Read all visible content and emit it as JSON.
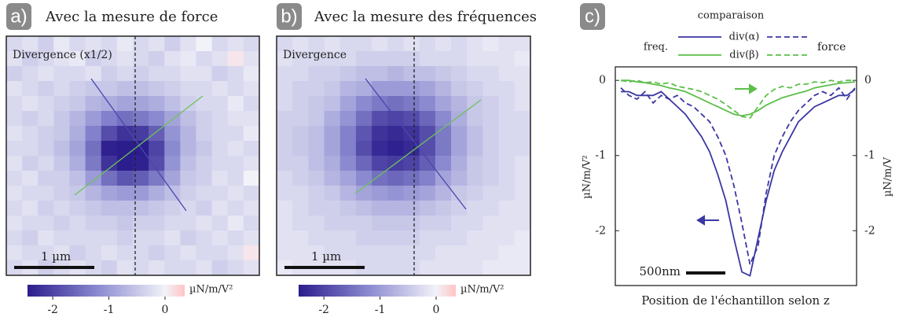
{
  "chart_data": [
    {
      "type": "heatmap",
      "label": "a)",
      "title": "Avec la mesure de force",
      "inset_label": "Divergence (x1/2)",
      "scale_bar": "1 µm",
      "colorbar_label": "µN/m/V²",
      "clim": [
        -2.45,
        0.35
      ],
      "cticks": [
        -2,
        -1,
        0
      ],
      "cmap": [
        [
          -2.45,
          "#2c1d8d"
        ],
        [
          -1.2,
          "#8b8ad0"
        ],
        [
          0,
          "#f2f2f9"
        ],
        [
          0.35,
          "#ffc4c4"
        ]
      ],
      "z": [
        [
          -0.3,
          -0.2,
          -0.4,
          -0.1,
          -0.3,
          -0.2,
          -0.3,
          -0.1,
          -0.3,
          -0.2,
          -0.4,
          -0.2,
          0,
          -0.3,
          -0.2,
          -0.3
        ],
        [
          -0.2,
          -0.4,
          -0.3,
          -0.2,
          -0.1,
          -0.4,
          -0.3,
          -0.2,
          -0.3,
          -0.4,
          -0.2,
          -0.1,
          -0.3,
          -0.2,
          0.1,
          -0.2
        ],
        [
          -0.4,
          -0.3,
          -0.2,
          -0.3,
          -0.3,
          -0.2,
          -0.4,
          -0.3,
          -0.4,
          -0.3,
          -0.3,
          -0.2,
          -0.2,
          -0.4,
          -0.3,
          -0.1
        ],
        [
          -0.2,
          -0.3,
          -0.4,
          -0.3,
          -0.4,
          -0.5,
          -0.5,
          -0.6,
          -0.6,
          -0.5,
          -0.4,
          -0.3,
          -0.3,
          -0.2,
          -0.3,
          -0.2
        ],
        [
          -0.3,
          -0.2,
          -0.3,
          -0.4,
          -0.5,
          -0.7,
          -0.8,
          -0.9,
          -0.9,
          -0.8,
          -0.6,
          -0.4,
          -0.3,
          -0.3,
          -0.1,
          -0.3
        ],
        [
          -0.3,
          -0.4,
          -0.3,
          -0.5,
          -0.7,
          -1.0,
          -1.3,
          -1.5,
          -1.4,
          -1.2,
          -0.9,
          -0.6,
          -0.4,
          -0.3,
          -0.2,
          -0.2
        ],
        [
          -0.2,
          -0.3,
          -0.4,
          -0.5,
          -0.8,
          -1.3,
          -1.9,
          -2.2,
          -2.1,
          -1.7,
          -1.1,
          -0.7,
          -0.4,
          -0.3,
          -0.3,
          -0.1
        ],
        [
          -0.3,
          -0.3,
          -0.4,
          -0.6,
          -0.9,
          -1.5,
          -2.4,
          -2.6,
          -2.5,
          -2.0,
          -1.2,
          -0.7,
          -0.5,
          -0.3,
          -0.2,
          -0.3
        ],
        [
          -0.2,
          -0.4,
          -0.3,
          -0.5,
          -0.8,
          -1.4,
          -2.2,
          -2.5,
          -2.4,
          -1.9,
          -1.1,
          -0.6,
          -0.4,
          -0.3,
          -0.3,
          -0.2
        ],
        [
          -0.3,
          -0.2,
          -0.4,
          -0.4,
          -0.6,
          -1.0,
          -1.5,
          -1.8,
          -1.7,
          -1.4,
          -0.9,
          -0.5,
          -0.4,
          -0.2,
          -0.3,
          0
        ],
        [
          -0.2,
          -0.3,
          -0.3,
          -0.4,
          -0.5,
          -0.7,
          -0.9,
          -1.0,
          -1.0,
          -0.8,
          -0.6,
          -0.4,
          -0.3,
          -0.3,
          -0.2,
          -0.3
        ],
        [
          -0.3,
          -0.2,
          -0.4,
          -0.3,
          -0.4,
          -0.5,
          -0.6,
          -0.6,
          -0.6,
          -0.5,
          -0.4,
          -0.3,
          -0.4,
          -0.2,
          -0.3,
          -0.2
        ],
        [
          -0.2,
          -0.3,
          -0.3,
          -0.4,
          -0.3,
          -0.4,
          -0.4,
          -0.5,
          -0.4,
          -0.4,
          -0.3,
          -0.3,
          -0.2,
          -0.3,
          -0.1,
          -0.3
        ],
        [
          -0.3,
          -0.4,
          -0.2,
          -0.3,
          -0.3,
          -0.3,
          -0.3,
          -0.4,
          -0.3,
          -0.3,
          -0.2,
          -0.4,
          -0.3,
          -0.2,
          -0.3,
          -0.2
        ],
        [
          -0.2,
          -0.3,
          -0.3,
          -0.2,
          -0.4,
          -0.3,
          -0.2,
          -0.3,
          -0.3,
          -0.4,
          -0.3,
          -0.2,
          -0.3,
          -0.3,
          -0.2,
          0.1
        ],
        [
          -0.3,
          -0.2,
          -0.4,
          -0.3,
          -0.2,
          -0.3,
          -0.4,
          -0.2,
          -0.3,
          -0.2,
          -0.3,
          -0.3,
          -0.2,
          -0.4,
          -0.3,
          -0.2
        ]
      ]
    },
    {
      "type": "heatmap",
      "label": "b)",
      "title": "Avec la mesure des fréquences",
      "inset_label": "Divergence",
      "scale_bar": "1 µm",
      "colorbar_label": "µN/m/V²",
      "clim": [
        -2.45,
        0.35
      ],
      "cticks": [
        -2,
        -1,
        0
      ],
      "cmap": [
        [
          -2.45,
          "#2c1d8d"
        ],
        [
          -1.2,
          "#8b8ad0"
        ],
        [
          0,
          "#f2f2f9"
        ],
        [
          0.35,
          "#ffc4c4"
        ]
      ],
      "z": [
        [
          -0.3,
          -0.2,
          -0.3,
          -0.2,
          -0.3,
          -0.3,
          -0.2,
          -0.3,
          -0.2,
          -0.3,
          -0.2,
          -0.3,
          -0.2,
          -0.1,
          -0.2,
          -0.2
        ],
        [
          -0.2,
          -0.3,
          -0.3,
          -0.3,
          -0.3,
          -0.4,
          -0.4,
          -0.4,
          -0.4,
          -0.3,
          -0.3,
          -0.3,
          -0.2,
          -0.2,
          -0.2,
          -0.1
        ],
        [
          -0.3,
          -0.3,
          -0.4,
          -0.4,
          -0.5,
          -0.6,
          -0.6,
          -0.7,
          -0.6,
          -0.6,
          -0.5,
          -0.4,
          -0.3,
          -0.3,
          -0.2,
          -0.2
        ],
        [
          -0.3,
          -0.4,
          -0.4,
          -0.5,
          -0.7,
          -0.8,
          -1.0,
          -1.0,
          -1.0,
          -0.9,
          -0.7,
          -0.5,
          -0.4,
          -0.3,
          -0.3,
          -0.2
        ],
        [
          -0.3,
          -0.4,
          -0.5,
          -0.6,
          -0.9,
          -1.2,
          -1.4,
          -1.5,
          -1.4,
          -1.2,
          -0.9,
          -0.7,
          -0.5,
          -0.4,
          -0.3,
          -0.2
        ],
        [
          -0.4,
          -0.4,
          -0.5,
          -0.8,
          -1.1,
          -1.5,
          -1.9,
          -2.0,
          -1.9,
          -1.6,
          -1.2,
          -0.8,
          -0.5,
          -0.4,
          -0.3,
          -0.3
        ],
        [
          -0.4,
          -0.5,
          -0.6,
          -0.9,
          -1.3,
          -1.8,
          -2.2,
          -2.3,
          -2.2,
          -1.9,
          -1.4,
          -0.9,
          -0.6,
          -0.4,
          -0.3,
          -0.3
        ],
        [
          -0.4,
          -0.5,
          -0.6,
          -0.9,
          -1.3,
          -1.9,
          -2.3,
          -2.4,
          -2.3,
          -1.9,
          -1.4,
          -0.9,
          -0.6,
          -0.4,
          -0.3,
          -0.3
        ],
        [
          -0.4,
          -0.4,
          -0.6,
          -0.8,
          -1.2,
          -1.6,
          -2.0,
          -2.1,
          -2.0,
          -1.7,
          -1.2,
          -0.8,
          -0.5,
          -0.4,
          -0.3,
          -0.2
        ],
        [
          -0.3,
          -0.4,
          -0.5,
          -0.7,
          -0.9,
          -1.2,
          -1.5,
          -1.6,
          -1.5,
          -1.3,
          -0.9,
          -0.7,
          -0.5,
          -0.4,
          -0.3,
          -0.2
        ],
        [
          -0.3,
          -0.3,
          -0.4,
          -0.5,
          -0.7,
          -0.9,
          -1.0,
          -1.1,
          -1.0,
          -0.9,
          -0.7,
          -0.5,
          -0.4,
          -0.3,
          -0.3,
          -0.2
        ],
        [
          -0.2,
          -0.3,
          -0.4,
          -0.4,
          -0.5,
          -0.6,
          -0.7,
          -0.7,
          -0.7,
          -0.6,
          -0.5,
          -0.4,
          -0.3,
          -0.3,
          -0.2,
          -0.2
        ],
        [
          -0.2,
          -0.3,
          -0.3,
          -0.4,
          -0.4,
          -0.4,
          -0.5,
          -0.5,
          -0.5,
          -0.4,
          -0.4,
          -0.3,
          -0.3,
          -0.2,
          -0.2,
          -0.2
        ],
        [
          -0.2,
          -0.2,
          -0.3,
          -0.3,
          -0.3,
          -0.4,
          -0.4,
          -0.4,
          -0.4,
          -0.3,
          -0.3,
          -0.3,
          -0.2,
          -0.2,
          -0.2,
          -0.1
        ],
        [
          -0.2,
          -0.2,
          -0.2,
          -0.3,
          -0.3,
          -0.3,
          -0.3,
          -0.3,
          -0.3,
          -0.3,
          -0.2,
          -0.2,
          -0.2,
          -0.2,
          -0.1,
          -0.1
        ],
        [
          -0.1,
          -0.2,
          -0.2,
          -0.2,
          -0.2,
          -0.3,
          -0.3,
          -0.3,
          -0.3,
          -0.2,
          -0.2,
          -0.2,
          -0.2,
          -0.1,
          -0.1,
          -0.1
        ]
      ]
    },
    {
      "type": "line",
      "label": "c)",
      "legend": {
        "title": "comparaison",
        "columns": [
          "freq.",
          "force"
        ]
      },
      "xlabel": "Position de l'échantillon selon z",
      "ylabel": "µN/m/V²",
      "y2label": "µN/m/V",
      "scale_bar": "500nm",
      "ylim": [
        -2.73,
        0.18
      ],
      "yticks": [
        0,
        -1,
        -2
      ],
      "y2lim": [
        -2.73,
        0.18
      ],
      "y2ticks": [
        0,
        -1,
        -2
      ],
      "series": [
        {
          "name": "div(α)",
          "color": "#3b37a3",
          "freq": [
            -0.15,
            -0.15,
            -0.2,
            -0.2,
            -0.2,
            -0.15,
            -0.25,
            -0.35,
            -0.45,
            -0.6,
            -0.75,
            -0.95,
            -1.25,
            -1.6,
            -2.1,
            -2.55,
            -2.6,
            -2.1,
            -1.6,
            -1.2,
            -0.95,
            -0.75,
            -0.55,
            -0.45,
            -0.35,
            -0.3,
            -0.25,
            -0.2,
            -0.2,
            -0.12
          ],
          "force": [
            -0.1,
            -0.2,
            -0.25,
            -0.15,
            -0.3,
            -0.2,
            -0.25,
            -0.2,
            -0.3,
            -0.35,
            -0.45,
            -0.55,
            -0.75,
            -1.0,
            -1.4,
            -1.9,
            -2.45,
            -2.2,
            -1.5,
            -1.0,
            -0.75,
            -0.55,
            -0.4,
            -0.3,
            -0.2,
            -0.15,
            -0.2,
            -0.1,
            -0.25,
            -0.1
          ]
        },
        {
          "name": "div(β)",
          "color": "#5cbf4a",
          "axis": "y2",
          "freq": [
            0,
            0,
            -0.02,
            -0.03,
            -0.05,
            -0.07,
            -0.1,
            -0.12,
            -0.15,
            -0.2,
            -0.25,
            -0.3,
            -0.35,
            -0.4,
            -0.45,
            -0.47,
            -0.45,
            -0.4,
            -0.33,
            -0.28,
            -0.23,
            -0.2,
            -0.17,
            -0.14,
            -0.1,
            -0.08,
            -0.06,
            -0.04,
            -0.03,
            -0.02
          ],
          "force": [
            0,
            -0.02,
            0,
            -0.03,
            -0.02,
            -0.05,
            -0.03,
            -0.08,
            -0.1,
            -0.12,
            -0.15,
            -0.2,
            -0.25,
            -0.32,
            -0.4,
            -0.48,
            -0.5,
            -0.35,
            -0.2,
            -0.12,
            -0.08,
            -0.1,
            -0.05,
            -0.05,
            -0.02,
            -0.03,
            0,
            -0.02,
            0,
            0
          ]
        }
      ]
    }
  ]
}
